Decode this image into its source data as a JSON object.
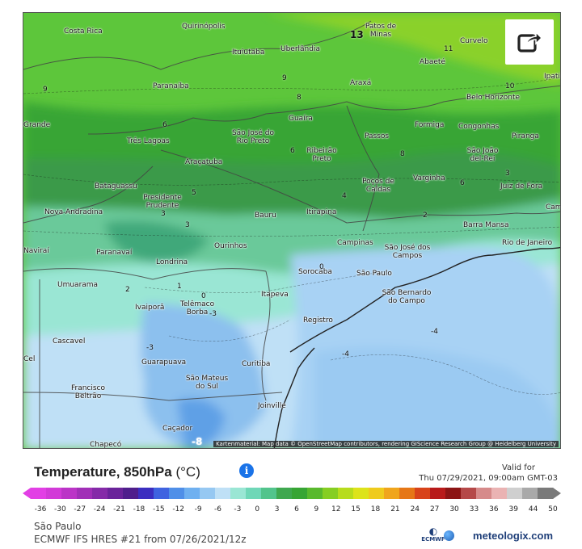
{
  "map": {
    "cities": [
      "Costa Rica",
      "Quirinópolis",
      "Patos de Minas",
      "Curvelo",
      "Ituiutaba",
      "Uberlândia",
      "Abaeté",
      "Ipatinga",
      "Paranaíba",
      "Araxá",
      "Belo Horizonte",
      "Guaíra",
      "Formiga",
      "Congonhas",
      "Piranga",
      "São José do Rio Preto",
      "Passos",
      "Três Lagoas",
      "Ribeirão Preto",
      "São João del-Rei",
      "Araçatuba",
      "Varginha",
      "Poços de Caldas",
      "Juiz de Fora",
      "Bataguassu",
      "Presidente Prudente",
      "Nova Andradina",
      "Bauru",
      "Itirapina",
      "Barra Mansa",
      "Campinas",
      "São José dos Campos",
      "Rio de Janeiro",
      "Paranavaí",
      "Ourinhos",
      "Londrina",
      "Sorocaba",
      "São Paulo",
      "São Bernardo do Campo",
      "Umuarama",
      "Telêmaco Borba",
      "Itapeva",
      "Ivaiporã",
      "Registro",
      "Cascavel",
      "Guarapuava",
      "Curitiba",
      "São Mateus do Sul",
      "Francisco Beltrão",
      "Joinville",
      "Caçador",
      "Chapecó",
      "Naviraí",
      "Grande",
      "Campos",
      "Cel"
    ],
    "isotherm_labels": [
      "13",
      "11",
      "10",
      "9",
      "9",
      "8",
      "8",
      "6",
      "6",
      "6",
      "5",
      "4",
      "3",
      "3",
      "3",
      "2",
      "2",
      "1",
      "0",
      "0",
      "-3",
      "-3",
      "-4",
      "-4",
      "-8"
    ],
    "attribution": "Kartenmaterial: Map data © OpenStreetMap contributors, rendering GIScience Research Group @ Heidelberg University"
  },
  "share_icon": "share-icon",
  "header": {
    "title": "Temperature, 850hPa",
    "unit": "(°C)",
    "info_icon": "i",
    "valid_label": "Valid for",
    "valid_time": "Thu 07/29/2021, 09:00am GMT-03"
  },
  "scale": {
    "ticks": [
      "-36",
      "-30",
      "-27",
      "-24",
      "-21",
      "-18",
      "-15",
      "-12",
      "-9",
      "-6",
      "-3",
      "0",
      "3",
      "6",
      "9",
      "12",
      "15",
      "18",
      "21",
      "24",
      "27",
      "30",
      "33",
      "36",
      "39",
      "44",
      "50"
    ],
    "colors": [
      "#e23fe5",
      "#d23ad8",
      "#bb34c7",
      "#a12fb7",
      "#852aa8",
      "#6a239a",
      "#4f1e8c",
      "#3b2ec0",
      "#3f63e0",
      "#4f8fe8",
      "#6fb0f0",
      "#96c8f2",
      "#bfe0f6",
      "#9ae6d4",
      "#6fd7b7",
      "#52c48c",
      "#3fa84f",
      "#37a534",
      "#59b92d",
      "#86ce22",
      "#b7dc1c",
      "#dde31a",
      "#efcb1c",
      "#f0a51c",
      "#e67716",
      "#d8431a",
      "#b81a1a",
      "#8c1414",
      "#b54848",
      "#d68a8a",
      "#eab3b3",
      "#cfcfcf",
      "#a9a9a9",
      "#7a7a7a"
    ]
  },
  "footer": {
    "location": "São Paulo",
    "model": "ECMWF IFS HRES #21 from 07/26/2021/12z",
    "brand": "meteologix.com",
    "ecmwf_label": "ECMWF"
  },
  "colors": {
    "accent": "#1a73e8",
    "brand": "#1f3f79"
  }
}
